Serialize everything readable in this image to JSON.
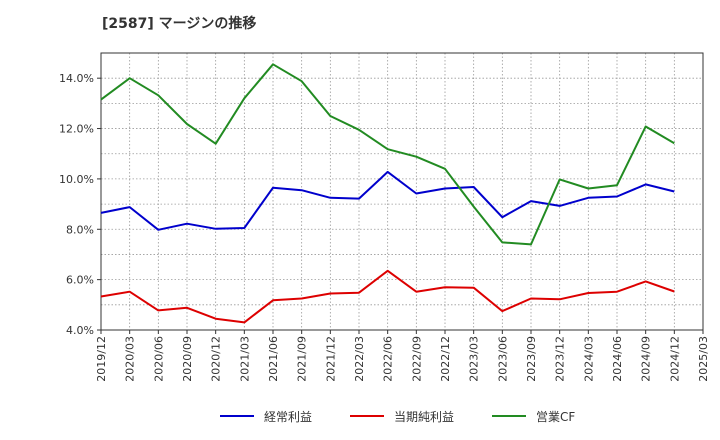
{
  "chart_data": {
    "type": "line",
    "title": "[2587]  マージンの推移",
    "xlabel": "",
    "ylabel": "",
    "ylim": [
      4.0,
      15.0
    ],
    "y_ticks": [
      "4.0%",
      "6.0%",
      "8.0%",
      "10.0%",
      "12.0%",
      "14.0%"
    ],
    "y_tick_values": [
      4,
      6,
      8,
      10,
      12,
      14
    ],
    "x": [
      "2019/12",
      "2020/03",
      "2020/06",
      "2020/09",
      "2020/12",
      "2021/03",
      "2021/06",
      "2021/09",
      "2021/12",
      "2022/03",
      "2022/06",
      "2022/09",
      "2022/12",
      "2023/03",
      "2023/06",
      "2023/09",
      "2023/12",
      "2024/03",
      "2024/06",
      "2024/09",
      "2024/12",
      "2025/03"
    ],
    "grid": true,
    "legend_position": "bottom",
    "series": [
      {
        "name": "経常利益",
        "color": "#0000cc",
        "values": [
          8.65,
          8.88,
          7.98,
          8.22,
          8.02,
          8.05,
          9.65,
          9.55,
          9.25,
          9.22,
          10.28,
          9.42,
          9.62,
          9.68,
          8.48,
          9.12,
          8.93,
          9.25,
          9.3,
          9.78,
          9.5,
          null
        ]
      },
      {
        "name": "当期純利益",
        "color": "#dd0000",
        "values": [
          5.33,
          5.52,
          4.78,
          4.88,
          4.45,
          4.3,
          5.18,
          5.25,
          5.45,
          5.48,
          6.35,
          5.52,
          5.7,
          5.68,
          4.75,
          5.25,
          5.22,
          5.47,
          5.52,
          5.93,
          5.53,
          null
        ]
      },
      {
        "name": "営業CF",
        "color": "#228b22",
        "values": [
          13.15,
          14.0,
          13.32,
          12.18,
          11.4,
          13.2,
          14.55,
          13.88,
          12.5,
          11.95,
          11.18,
          10.88,
          10.4,
          8.9,
          7.48,
          7.4,
          9.98,
          9.62,
          9.75,
          12.08,
          11.42,
          null
        ]
      }
    ]
  }
}
